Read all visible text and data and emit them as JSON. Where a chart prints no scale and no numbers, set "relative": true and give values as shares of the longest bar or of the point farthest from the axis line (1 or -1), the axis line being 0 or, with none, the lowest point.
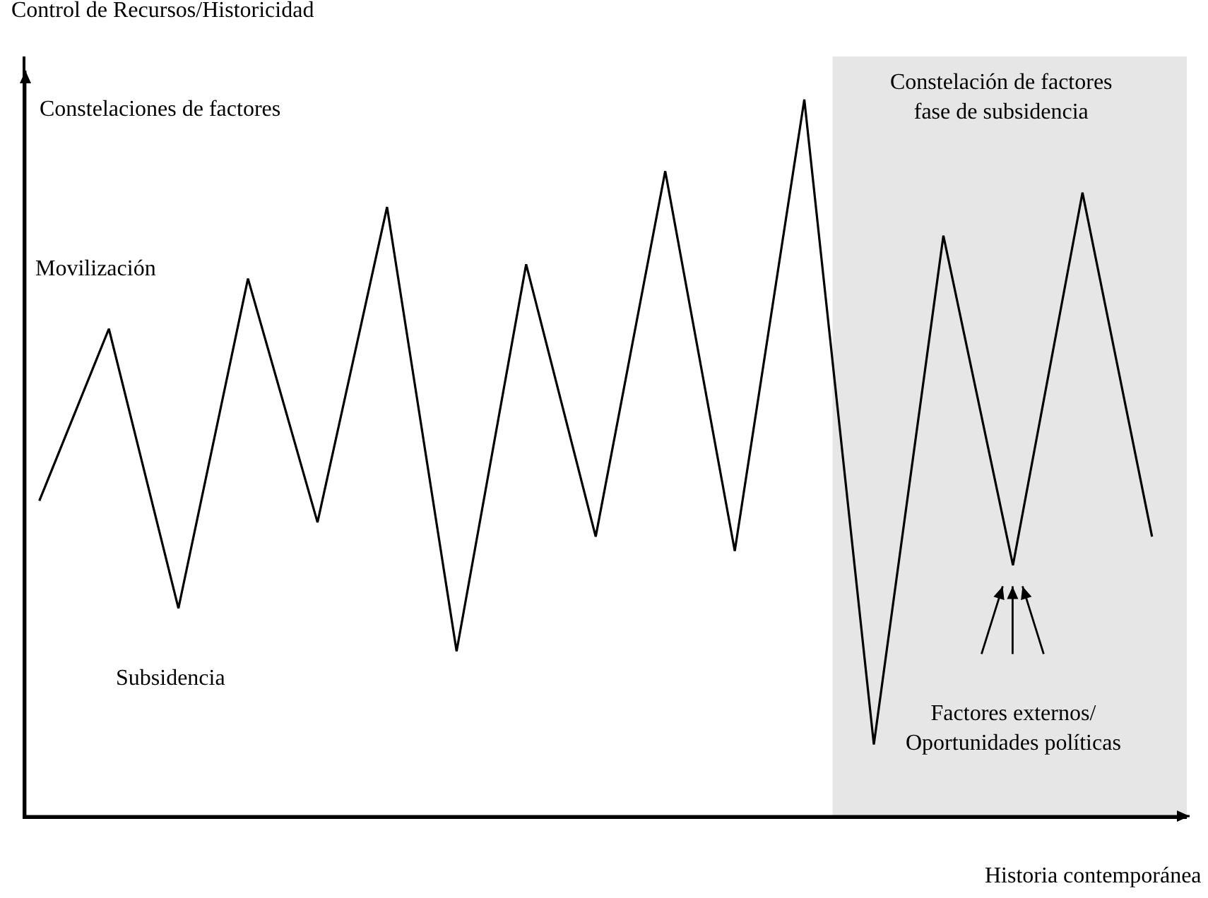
{
  "chart_data": {
    "type": "line",
    "relative": true,
    "xlabel": "Historia contemporánea",
    "ylabel": "Control de Recursos/Historicidad",
    "categories": [
      null,
      null,
      null,
      null,
      null,
      null,
      null,
      null,
      null,
      null,
      null,
      null,
      null,
      null,
      null,
      null,
      null
    ],
    "series": [
      {
        "color": "#000000",
        "values": [
          0.44,
          0.68,
          0.29,
          0.75,
          0.41,
          0.85,
          0.23,
          0.77,
          0.39,
          0.9,
          0.37,
          1,
          0.1,
          0.81,
          0.35,
          0.87,
          0.39
        ]
      }
    ],
    "line_style": "solid",
    "annotations": [
      "Constelaciones de factores",
      "Constelación de factores fase de subsidencia",
      "Movilización",
      "Subsidencia",
      "Factores externos/ Oportunidades políticas"
    ]
  }
}
